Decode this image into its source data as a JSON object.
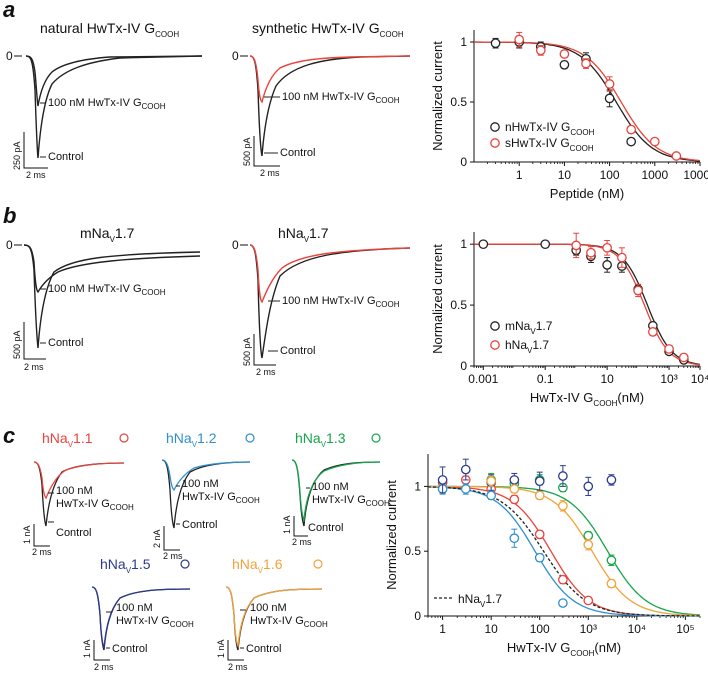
{
  "panel_labels": {
    "a": "a",
    "b": "b",
    "c": "c"
  },
  "traces": {
    "a1": {
      "title": "natural HwTx-IV G",
      "title_sub": "COOH",
      "zero": "0",
      "toxin": "100 nM HwTx-IV G",
      "toxin_sub": "COOH",
      "control": "Control",
      "sb_y": "250 pA",
      "sb_x": "2 ms",
      "color": "#222222"
    },
    "a2": {
      "title": "synthetic HwTx-IV G",
      "title_sub": "COOH",
      "zero": "0",
      "toxin": "100 nM HwTx-IV G",
      "toxin_sub": "COOH",
      "control": "Control",
      "sb_y": "500 pA",
      "sb_x": "2 ms",
      "color": "#e8433c"
    },
    "b1": {
      "title_main": "mNa",
      "title_sub": "V",
      "title_tail": "1.7",
      "zero": "0",
      "toxin": "100 nM HwTx-IV G",
      "toxin_sub": "COOH",
      "control": "Control",
      "sb_y": "500 pA",
      "sb_x": "2 ms",
      "color": "#222222"
    },
    "b2": {
      "title_main": "hNa",
      "title_sub": "V",
      "title_tail": "1.7",
      "zero": "0",
      "toxin": "100 nM HwTx-IV G",
      "toxin_sub": "COOH",
      "control": "Control",
      "sb_y": "500 pA",
      "sb_x": "2 ms",
      "color": "#e8433c"
    },
    "c1": {
      "title_main": "hNa",
      "title_sub": "V",
      "title_tail": "1.1",
      "toxin1": "100 nM",
      "toxin2": "HwTx-IV G",
      "toxin_sub": "COOH",
      "control": "Control",
      "sb_y": "1 nA",
      "sb_x": "2 ms",
      "color": "#e8433c"
    },
    "c2": {
      "title_main": "hNa",
      "title_sub": "V",
      "title_tail": "1.2",
      "toxin1": "100 nM",
      "toxin2": "HwTx-IV G",
      "toxin_sub": "COOH",
      "control": "Control",
      "sb_y": "2 nA",
      "sb_x": "2 ms",
      "color": "#2f8fce"
    },
    "c3": {
      "title_main": "hNa",
      "title_sub": "V",
      "title_tail": "1.3",
      "toxin1": "100 nM",
      "toxin2": "HwTx-IV G",
      "toxin_sub": "COOH",
      "control": "Control",
      "sb_y": "1 nA",
      "sb_x": "2 ms",
      "color": "#15a54a"
    },
    "c4": {
      "title_main": "hNa",
      "title_sub": "V",
      "title_tail": "1.5",
      "toxin1": "100 nM",
      "toxin2": "HwTx-IV G",
      "toxin_sub": "COOH",
      "control": "Control",
      "sb_y": "1 nA",
      "sb_x": "2 ms",
      "color": "#2b3a8f"
    },
    "c5": {
      "title_main": "hNa",
      "title_sub": "V",
      "title_tail": "1.6",
      "toxin1": "100 nM",
      "toxin2": "HwTx-IV G",
      "toxin_sub": "COOH",
      "control": "Control",
      "sb_y": "1 nA",
      "sb_x": "2 ms",
      "color": "#f2a23a"
    }
  },
  "chart_data": [
    {
      "type": "scatter",
      "panel": "a",
      "xscale": "log",
      "xlim": [
        0.1,
        10000
      ],
      "ylim": [
        0,
        1.1
      ],
      "xticks": [
        1,
        10,
        100,
        1000,
        10000
      ],
      "xtick_labels": [
        "1",
        "10",
        "100",
        "1000",
        "10000"
      ],
      "yticks": [
        0,
        0.5,
        1
      ],
      "ytick_labels": [
        "0",
        "0.5",
        "1"
      ],
      "xlabel": "Peptide (nM)",
      "ylabel": "Normalized current",
      "legend_position": "bottom-left",
      "series": [
        {
          "name_main": "nHwTx-IV G",
          "name_sub": "COOH",
          "color": "#222222",
          "x": [
            0.3,
            1,
            3,
            10,
            30,
            100,
            300
          ],
          "y": [
            0.99,
            1.0,
            0.96,
            0.81,
            0.86,
            0.53,
            0.17
          ],
          "err": [
            0.04,
            0.05,
            0.04,
            0.03,
            0.05,
            0.07,
            0.02
          ],
          "ic50": 140,
          "hill": 1.1
        },
        {
          "name_main": "sHwTx-IV G",
          "name_sub": "COOH",
          "color": "#e8433c",
          "x": [
            1,
            3,
            10,
            30,
            100,
            300,
            1000,
            3000
          ],
          "y": [
            1.02,
            0.93,
            0.9,
            0.82,
            0.65,
            0.27,
            0.17,
            0.05
          ],
          "err": [
            0.06,
            0.04,
            0.03,
            0.04,
            0.06,
            0.03,
            0.02,
            0.01
          ],
          "ic50": 180,
          "hill": 1.1
        }
      ]
    },
    {
      "type": "scatter",
      "panel": "b",
      "xscale": "log",
      "xlim": [
        0.0005,
        10000
      ],
      "ylim": [
        0,
        1.1
      ],
      "xticks": [
        0.001,
        0.1,
        10,
        1000,
        10000
      ],
      "xtick_labels": [
        "0.001",
        "0.1",
        "10",
        "10³",
        "10⁴"
      ],
      "yticks": [
        0,
        0.5,
        1
      ],
      "ytick_labels": [
        "0",
        "0.5",
        "1"
      ],
      "xlabel_main": "HwTx-IV G",
      "xlabel_sub": "COOH",
      "xlabel_tail": "(nM)",
      "ylabel": "Normalized current",
      "legend_position": "bottom-left",
      "series": [
        {
          "name_main": "mNa",
          "name_sub": "V",
          "name_tail": "1.7",
          "color": "#222222",
          "x": [
            0.001,
            0.1,
            1,
            3,
            10,
            30,
            100,
            300,
            1000,
            3000
          ],
          "y": [
            1.0,
            1.0,
            0.95,
            0.9,
            0.83,
            0.82,
            0.63,
            0.33,
            0.12,
            0.05
          ],
          "err": [
            0.01,
            0.02,
            0.04,
            0.05,
            0.06,
            0.05,
            0.04,
            0.03,
            0.02,
            0.01
          ],
          "ic50": 200,
          "hill": 1.1
        },
        {
          "name_main": "hNa",
          "name_sub": "V",
          "name_tail": "1.7",
          "color": "#e8433c",
          "x": [
            1,
            3,
            10,
            30,
            100,
            300,
            1000,
            3000
          ],
          "y": [
            0.99,
            0.93,
            0.97,
            0.89,
            0.62,
            0.28,
            0.14,
            0.07
          ],
          "err": [
            0.1,
            0.05,
            0.06,
            0.08,
            0.05,
            0.03,
            0.02,
            0.01
          ],
          "ic50": 160,
          "hill": 1.1
        }
      ]
    },
    {
      "type": "scatter",
      "panel": "c",
      "xscale": "log",
      "xlim": [
        0.5,
        200000
      ],
      "ylim": [
        0,
        1.25
      ],
      "xticks": [
        1,
        10,
        100,
        1000,
        10000,
        100000
      ],
      "xtick_labels": [
        "1",
        "10",
        "100",
        "10³",
        "10⁴",
        "10⁵"
      ],
      "yticks": [
        0,
        0.5,
        1
      ],
      "ytick_labels": [
        "0",
        "0.5",
        "1"
      ],
      "xlabel_main": "HwTx-IV G",
      "xlabel_sub": "COOH",
      "xlabel_tail": "(nM)",
      "ylabel": "Normalized current",
      "legend_main": "hNa",
      "legend_sub": "V",
      "legend_tail": "1.7",
      "legend_position": "bottom-left",
      "series": [
        {
          "name": "hNaV1.1",
          "color": "#e8433c",
          "x": [
            1,
            3,
            10,
            30,
            100,
            300,
            1000
          ],
          "y": [
            1.03,
            1.05,
            0.98,
            0.9,
            0.63,
            0.28,
            0.12
          ],
          "err": [
            0.04,
            0.03,
            0.03,
            0.03,
            0.03,
            0.03,
            0.02
          ],
          "ic50": 170,
          "hill": 1.1
        },
        {
          "name": "hNaV1.2",
          "color": "#2f8fce",
          "x": [
            1,
            3,
            10,
            30,
            100,
            300
          ],
          "y": [
            0.98,
            0.98,
            0.93,
            0.6,
            0.45,
            0.1
          ],
          "err": [
            0.04,
            0.04,
            0.03,
            0.07,
            0.03,
            0.02
          ],
          "ic50": 80,
          "hill": 1.1
        },
        {
          "name": "hNaV1.3",
          "color": "#15a54a",
          "x": [
            10,
            30,
            100,
            300,
            1000,
            3000
          ],
          "y": [
            1.05,
            1.02,
            1.05,
            0.99,
            0.62,
            0.43
          ],
          "err": [
            0.05,
            0.04,
            0.04,
            0.03,
            0.03,
            0.04
          ],
          "ic50": 2500,
          "hill": 1.1
        },
        {
          "name": "hNaV1.5",
          "color": "#2b3a8f",
          "x": [
            1,
            3,
            10,
            30,
            100,
            300,
            1000,
            3000
          ],
          "y": [
            1.05,
            1.13,
            1.03,
            1.05,
            1.04,
            1.08,
            1.0,
            1.05
          ],
          "err": [
            0.1,
            0.08,
            0.06,
            0.05,
            0.07,
            0.08,
            0.07,
            0.04
          ],
          "ic50": null,
          "hill": null
        },
        {
          "name": "hNaV1.6",
          "color": "#f2a23a",
          "x": [
            10,
            30,
            100,
            300,
            1000,
            3000
          ],
          "y": [
            1.04,
            0.98,
            0.93,
            0.85,
            0.55,
            0.25
          ],
          "err": [
            0.04,
            0.03,
            0.03,
            0.04,
            0.04,
            0.03
          ],
          "ic50": 1200,
          "hill": 1.1
        },
        {
          "name": "hNaV1.7",
          "color": "#222222",
          "dashed": true,
          "x": [],
          "y": [],
          "err": [],
          "ic50": 120,
          "hill": 1.0
        }
      ]
    }
  ]
}
